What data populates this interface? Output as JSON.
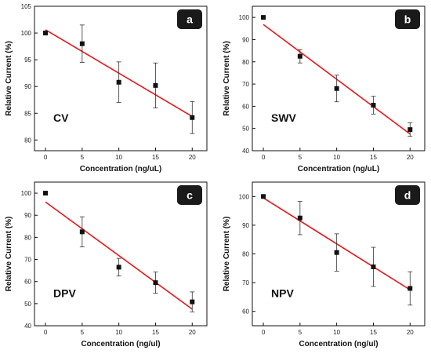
{
  "chart_data": [
    {
      "type": "scatter",
      "panel_letter": "a",
      "method_label": "CV",
      "xlabel": "Concentration (ng/uL)",
      "ylabel": "Relative Current (%)",
      "xlim": [
        -1.5,
        22
      ],
      "ylim": [
        78,
        105
      ],
      "x_ticks": [
        0,
        5,
        10,
        15,
        20
      ],
      "y_ticks": [
        80,
        85,
        90,
        95,
        100,
        105
      ],
      "x": [
        0,
        5,
        10,
        15,
        20
      ],
      "y": [
        100,
        98,
        90.8,
        90.2,
        84.2
      ],
      "error": [
        0.3,
        3.5,
        3.8,
        4.2,
        3.0
      ],
      "fit": {
        "x": [
          0,
          20
        ],
        "y": [
          100.6,
          84.4
        ]
      },
      "colors": {
        "points": "#111111",
        "fit": "#e3191c",
        "badge": "#1a1a1a"
      },
      "legend": "none"
    },
    {
      "type": "scatter",
      "panel_letter": "b",
      "method_label": "SWV",
      "xlabel": "Concentration (ng/uL)",
      "ylabel": "Relative Current (%)",
      "xlim": [
        -1.5,
        22
      ],
      "ylim": [
        40,
        105
      ],
      "x_ticks": [
        0,
        5,
        10,
        15,
        20
      ],
      "y_ticks": [
        40,
        50,
        60,
        70,
        80,
        90,
        100
      ],
      "x": [
        0,
        5,
        10,
        15,
        20
      ],
      "y": [
        100,
        82.5,
        68,
        60.5,
        49.5
      ],
      "error": [
        0.3,
        3.0,
        6.0,
        4.0,
        3.0
      ],
      "fit": {
        "x": [
          0,
          20
        ],
        "y": [
          96.8,
          47.5
        ]
      },
      "colors": {
        "points": "#111111",
        "fit": "#e3191c",
        "badge": "#1a1a1a"
      },
      "legend": "none"
    },
    {
      "type": "scatter",
      "panel_letter": "c",
      "method_label": "DPV",
      "xlabel": "Concentration (ng/ul)",
      "ylabel": "Relative Current (%)",
      "xlim": [
        -1.5,
        22
      ],
      "ylim": [
        40,
        105
      ],
      "x_ticks": [
        0,
        5,
        10,
        15,
        20
      ],
      "y_ticks": [
        40,
        50,
        60,
        70,
        80,
        90,
        100
      ],
      "x": [
        0,
        5,
        10,
        15,
        20
      ],
      "y": [
        100,
        82.5,
        66.5,
        59.5,
        50.8
      ],
      "error": [
        0.3,
        6.8,
        4.0,
        4.8,
        4.5
      ],
      "fit": {
        "x": [
          0,
          20
        ],
        "y": [
          96,
          47.5
        ]
      },
      "colors": {
        "points": "#111111",
        "fit": "#e3191c",
        "badge": "#1a1a1a"
      },
      "legend": "none"
    },
    {
      "type": "scatter",
      "panel_letter": "d",
      "method_label": "NPV",
      "xlabel": "Concentration (ng/ul)",
      "ylabel": "Relative Current (%)",
      "xlim": [
        -1.5,
        22
      ],
      "ylim": [
        55,
        105
      ],
      "x_ticks": [
        0,
        5,
        10,
        15,
        20
      ],
      "y_ticks": [
        60,
        70,
        80,
        90,
        100
      ],
      "x": [
        0,
        5,
        10,
        15,
        20
      ],
      "y": [
        100,
        92.5,
        80.5,
        75.5,
        68
      ],
      "error": [
        0.3,
        5.8,
        6.5,
        6.8,
        5.8
      ],
      "fit": {
        "x": [
          0,
          20
        ],
        "y": [
          99.5,
          67.5
        ]
      },
      "colors": {
        "points": "#111111",
        "fit": "#e3191c",
        "badge": "#1a1a1a"
      },
      "legend": "none"
    }
  ]
}
